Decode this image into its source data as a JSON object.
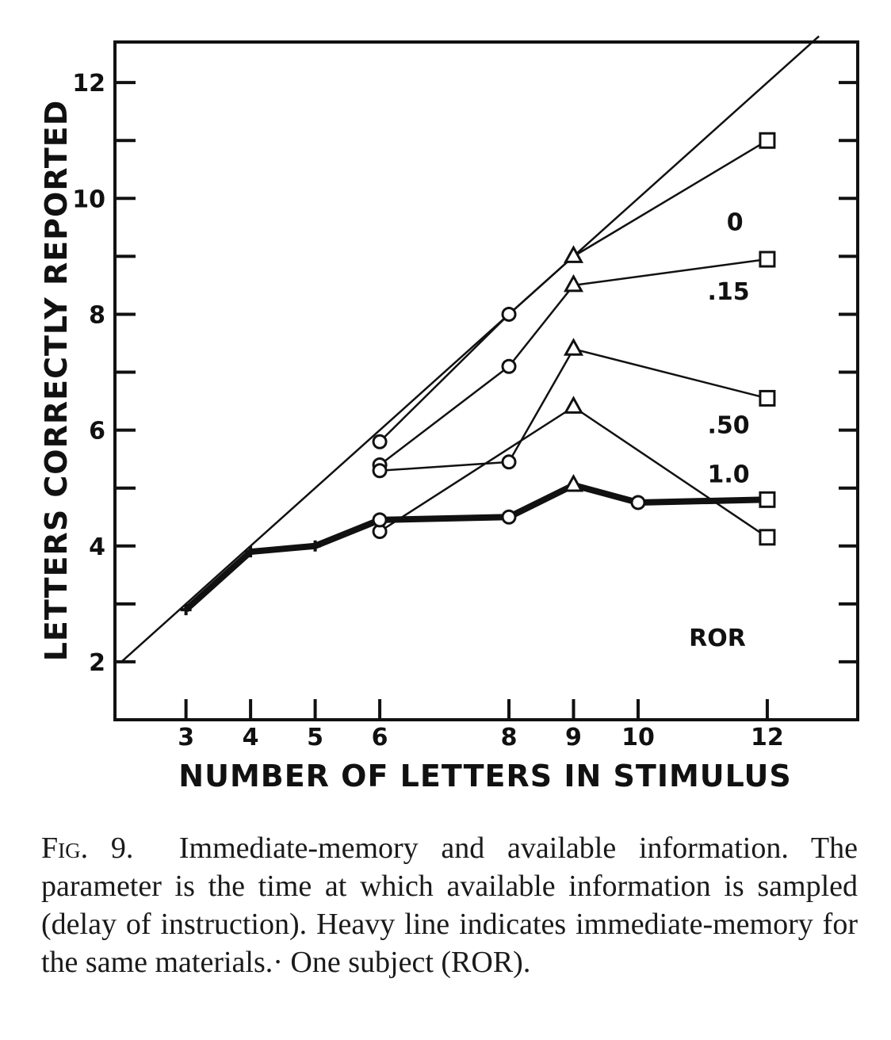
{
  "chart_data": {
    "type": "line",
    "xlabel": "NUMBER OF LETTERS IN STIMULUS",
    "ylabel": "LETTERS CORRECTLY REPORTED",
    "xlim": [
      1.9,
      13.4
    ],
    "ylim": [
      1.0,
      12.7
    ],
    "x_ticks": [
      3,
      4,
      5,
      6,
      8,
      9,
      10,
      12
    ],
    "x_tick_labels": [
      "3",
      "4",
      "5",
      "6",
      "8",
      "9",
      "10",
      "12"
    ],
    "y_ticks": [
      2,
      3,
      4,
      5,
      6,
      7,
      8,
      9,
      10,
      11,
      12
    ],
    "y_tick_labels": [
      {
        "value": 2,
        "label": "2"
      },
      {
        "value": 4,
        "label": "4"
      },
      {
        "value": 6,
        "label": "6"
      },
      {
        "value": 8,
        "label": "8"
      },
      {
        "value": 10,
        "label": "10"
      },
      {
        "value": 12,
        "label": "12"
      }
    ],
    "annotation": "ROR",
    "reference_line": {
      "x": [
        2,
        13.4
      ],
      "y": [
        2,
        13.4
      ]
    },
    "series": [
      {
        "name": "0",
        "label_at": [
          11.5,
          9.6
        ],
        "points": [
          {
            "x": 6,
            "y": 5.8,
            "m": "circle"
          },
          {
            "x": 8,
            "y": 8.0,
            "m": "circle"
          },
          {
            "x": 9,
            "y": 9.0,
            "m": "triangle"
          },
          {
            "x": 12,
            "y": 11.0,
            "m": "square"
          }
        ]
      },
      {
        "name": ".15",
        "label_at": [
          11.4,
          8.4
        ],
        "points": [
          {
            "x": 6,
            "y": 5.4,
            "m": "circle"
          },
          {
            "x": 8,
            "y": 7.1,
            "m": "circle"
          },
          {
            "x": 9,
            "y": 8.5,
            "m": "triangle"
          },
          {
            "x": 12,
            "y": 8.95,
            "m": "square"
          }
        ]
      },
      {
        "name": ".50",
        "label_at": [
          11.4,
          6.1
        ],
        "points": [
          {
            "x": 6,
            "y": 5.3,
            "m": "circle"
          },
          {
            "x": 8,
            "y": 5.45,
            "m": "circle"
          },
          {
            "x": 9,
            "y": 7.4,
            "m": "triangle"
          },
          {
            "x": 12,
            "y": 6.55,
            "m": "square"
          }
        ]
      },
      {
        "name": "1.0",
        "label_at": [
          11.4,
          5.25
        ],
        "points": [
          {
            "x": 6,
            "y": 4.25,
            "m": "circle"
          },
          {
            "x": 9,
            "y": 6.4,
            "m": "triangle"
          },
          {
            "x": 12,
            "y": 4.15,
            "m": "square"
          }
        ]
      },
      {
        "name": "Immediate-memory",
        "heavy": true,
        "points": [
          {
            "x": 3,
            "y": 2.9,
            "m": "plus"
          },
          {
            "x": 4,
            "y": 3.9,
            "m": "plus"
          },
          {
            "x": 5,
            "y": 4.0,
            "m": "plus"
          },
          {
            "x": 6,
            "y": 4.45,
            "m": "circle"
          },
          {
            "x": 8,
            "y": 4.5,
            "m": "circle"
          },
          {
            "x": 9,
            "y": 5.05,
            "m": "triangle"
          },
          {
            "x": 10,
            "y": 4.75,
            "m": "circle"
          },
          {
            "x": 12,
            "y": 4.8,
            "m": "square"
          }
        ]
      }
    ]
  },
  "caption": {
    "fig_label": "Fig. 9.",
    "text": "Immediate-memory and available information. The parameter is the time at which available information is sampled (delay of instruction). Heavy line indicates immediate-memory for the same materials.· One subject (ROR)."
  }
}
